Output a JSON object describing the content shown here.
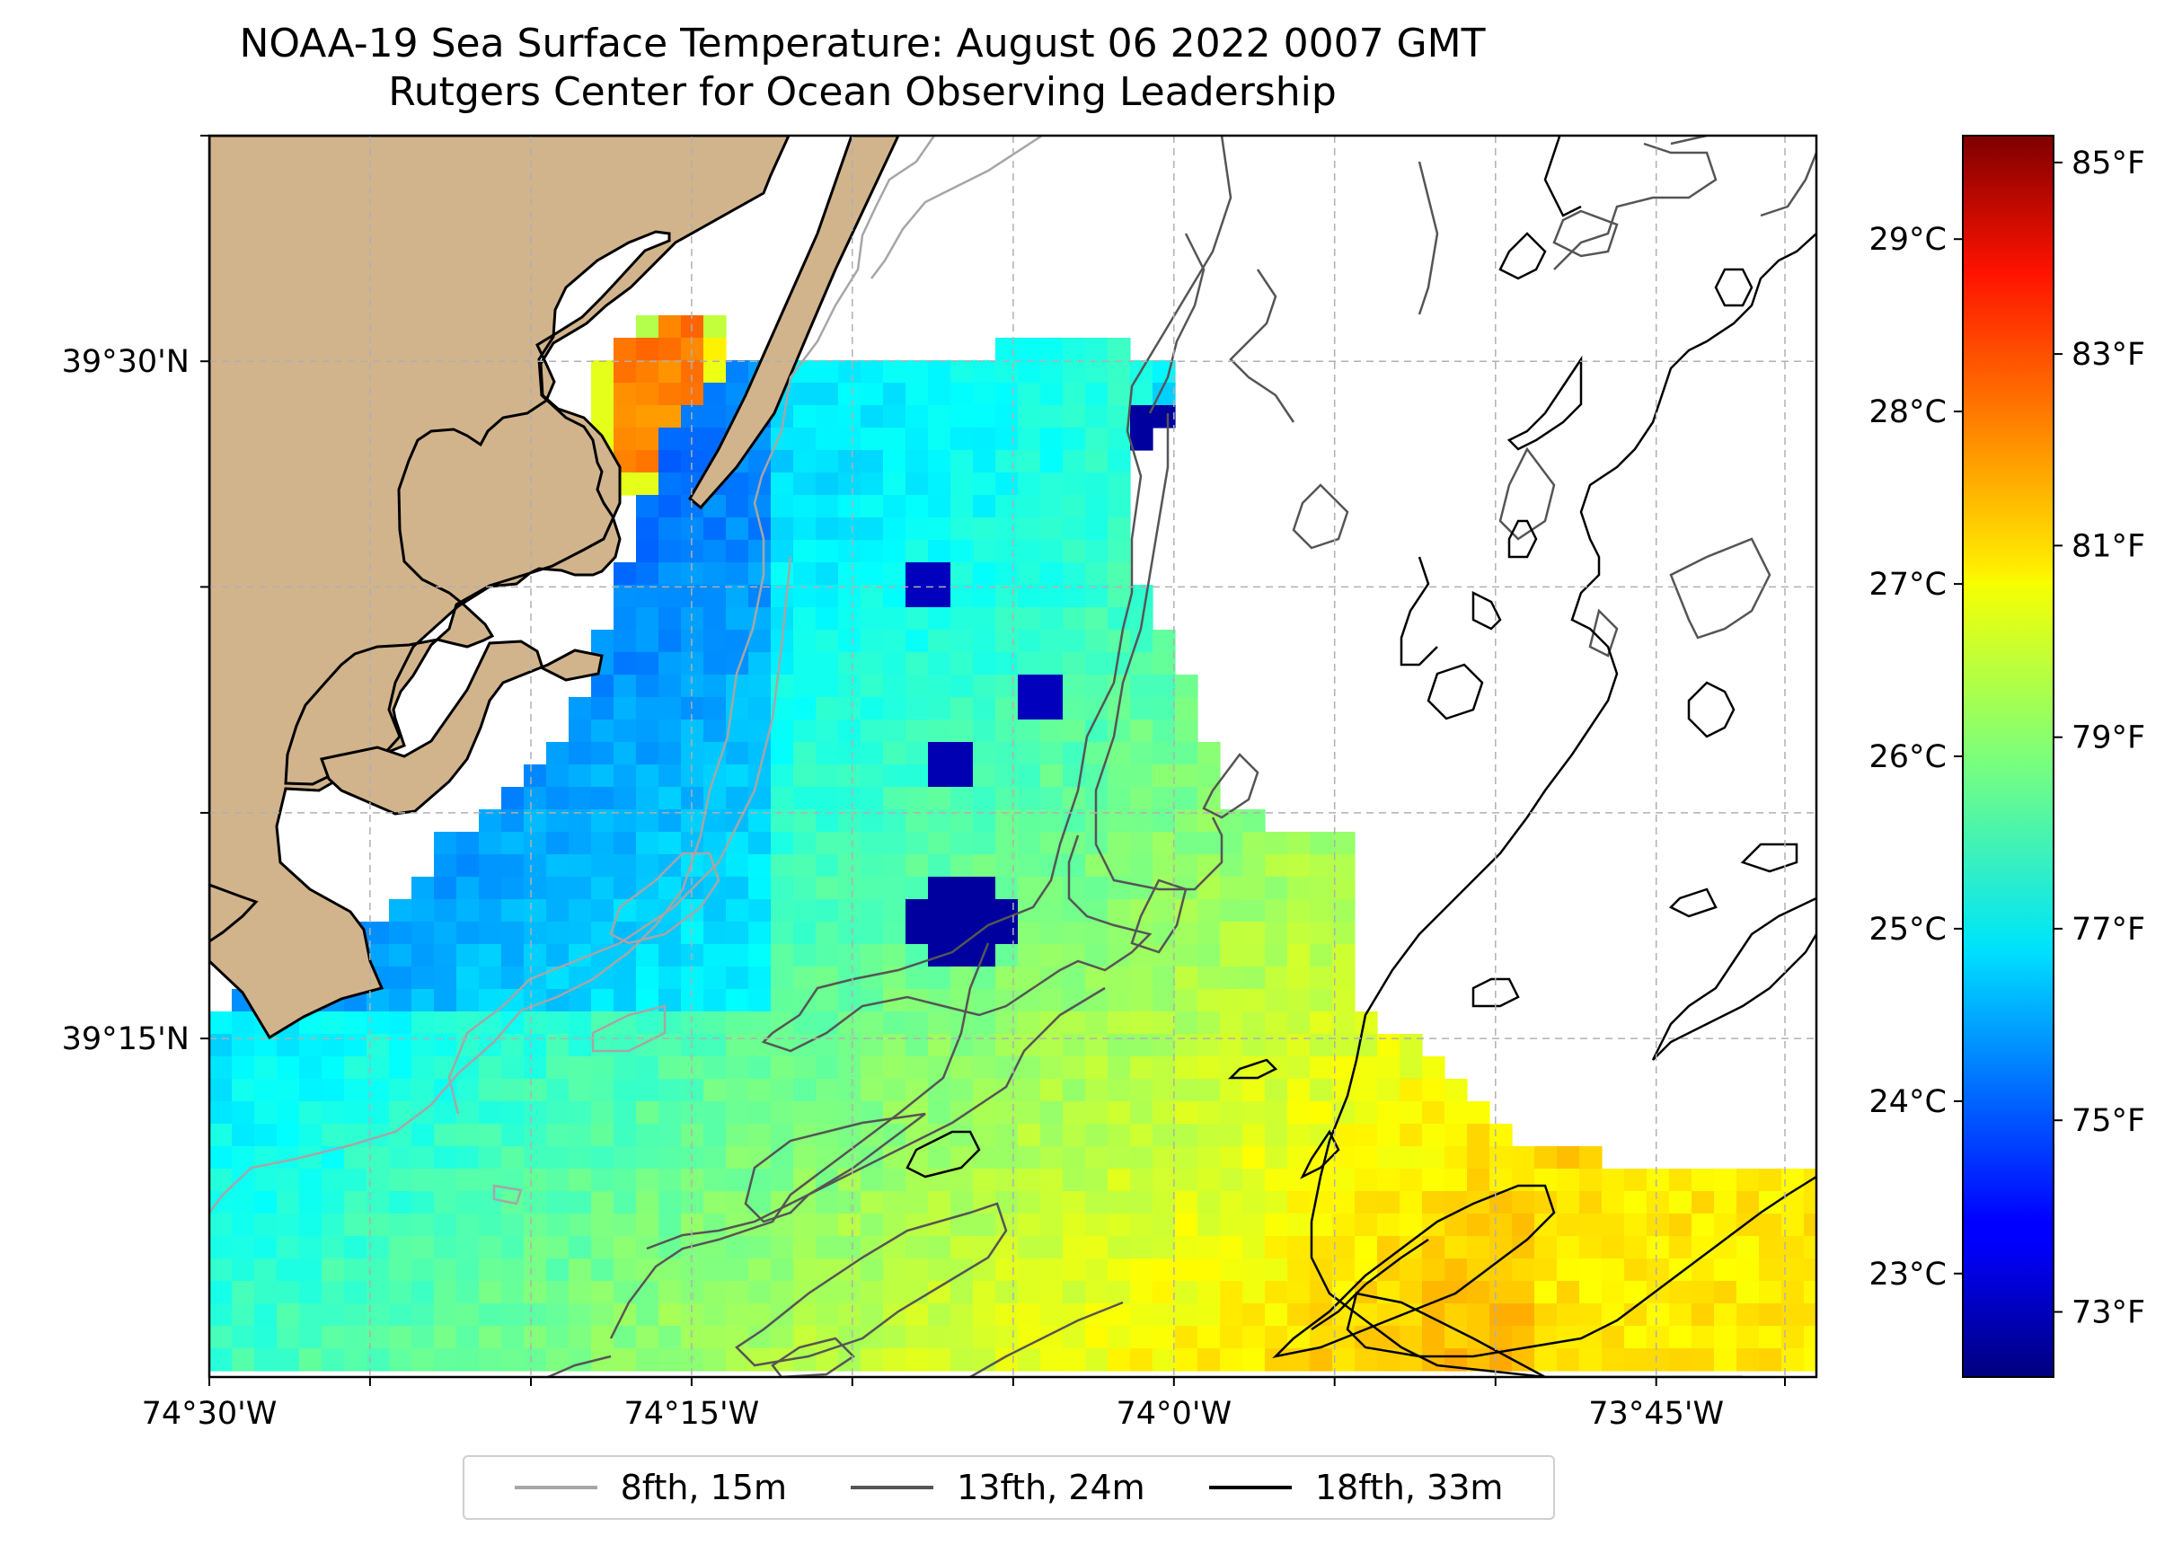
{
  "title": {
    "line1": "NOAA-19 Sea Surface Temperature: August 06 2022 0007 GMT",
    "line2": "Rutgers Center for Ocean Observing Leadership"
  },
  "map": {
    "lon_range": [
      -74.5,
      -73.667
    ],
    "lat_range": [
      39.125,
      39.5833
    ],
    "lon_ticks": [
      {
        "value": -74.5,
        "label": "74°30'W"
      },
      {
        "value": -74.25,
        "label": "74°15'W"
      },
      {
        "value": -74.0,
        "label": "74°0'W"
      },
      {
        "value": -73.75,
        "label": "73°45'W"
      }
    ],
    "lat_ticks": [
      {
        "value": 39.5,
        "label": "39°30'N"
      },
      {
        "value": 39.25,
        "label": "39°15'N"
      }
    ],
    "minor_lon_gridlines": [
      -74.5,
      -74.4167,
      -74.3333,
      -74.25,
      -74.1667,
      -74.0833,
      -74.0,
      -73.9167,
      -73.8333,
      -73.75,
      -73.6833
    ],
    "minor_lat_gridlines": [
      39.5833,
      39.5,
      39.4167,
      39.3333,
      39.25
    ],
    "gridlines": "dashed",
    "land_color": "#D2B48C",
    "ocean_background": "#ffffff"
  },
  "colorbar": {
    "colormap": "jet",
    "range_c": [
      22.4,
      29.6
    ],
    "celsius_ticks": [
      "23°C",
      "24°C",
      "25°C",
      "26°C",
      "27°C",
      "28°C",
      "29°C"
    ],
    "fahrenheit_ticks": [
      "73°F",
      "75°F",
      "77°F",
      "79°F",
      "81°F",
      "83°F",
      "85°F"
    ]
  },
  "legend": {
    "entries": [
      {
        "label": "8fth, 15m",
        "color": "#a6a6a6"
      },
      {
        "label": "13fth, 24m",
        "color": "#555555"
      },
      {
        "label": "18fth, 33m",
        "color": "#000000"
      }
    ]
  }
}
